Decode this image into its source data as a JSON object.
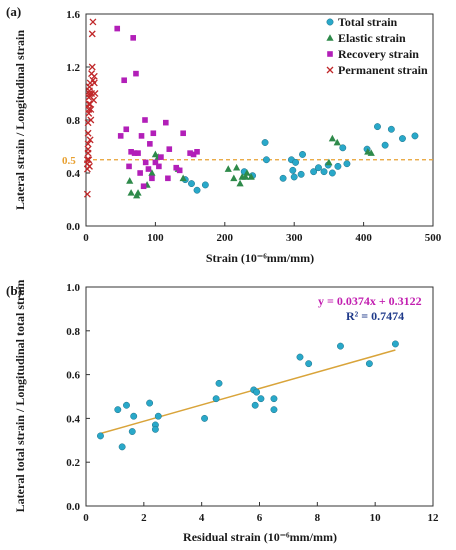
{
  "colors": {
    "total": "#29a8c9",
    "elastic": "#2e8a4a",
    "recovery": "#b21fb8",
    "permanent": "#c0282a",
    "trend": "#d9a43a",
    "refline": "#e8a030",
    "refline_label": "#e8a030",
    "equation": "#c21fb0",
    "r2": "#1f3a8a"
  },
  "chart_data": [
    {
      "panel_label": "(a)",
      "type": "scatter",
      "xlabel": "Strain (10⁻⁶mm/mm)",
      "ylabel": "Lateral strain / Longitudinal strain",
      "xlim": [
        0,
        500
      ],
      "ylim": [
        0,
        1.6
      ],
      "xticks": [
        "0",
        "100",
        "200",
        "300",
        "400",
        "500"
      ],
      "yticks": [
        "0.0",
        "0.4",
        "0.8",
        "1.2",
        "1.6"
      ],
      "grid": false,
      "legend_position": "top-right",
      "reference_line": {
        "y": 0.5,
        "label": "0.5"
      },
      "series": [
        {
          "name": "Total strain",
          "marker": "circle",
          "color_key": "total",
          "points": [
            [
              143,
              0.35
            ],
            [
              152,
              0.32
            ],
            [
              160,
              0.27
            ],
            [
              172,
              0.31
            ],
            [
              228,
              0.41
            ],
            [
              240,
              0.38
            ],
            [
              258,
              0.63
            ],
            [
              260,
              0.5
            ],
            [
              284,
              0.36
            ],
            [
              296,
              0.5
            ],
            [
              298,
              0.42
            ],
            [
              300,
              0.37
            ],
            [
              302,
              0.48
            ],
            [
              310,
              0.39
            ],
            [
              312,
              0.54
            ],
            [
              328,
              0.41
            ],
            [
              335,
              0.44
            ],
            [
              343,
              0.41
            ],
            [
              349,
              0.46
            ],
            [
              355,
              0.4
            ],
            [
              363,
              0.45
            ],
            [
              370,
              0.59
            ],
            [
              376,
              0.47
            ],
            [
              405,
              0.58
            ],
            [
              420,
              0.75
            ],
            [
              431,
              0.61
            ],
            [
              440,
              0.73
            ],
            [
              456,
              0.66
            ],
            [
              474,
              0.68
            ]
          ]
        },
        {
          "name": "Elastic strain",
          "marker": "triangle",
          "color_key": "elastic",
          "points": [
            [
              63,
              0.34
            ],
            [
              65,
              0.25
            ],
            [
              73,
              0.23
            ],
            [
              75,
              0.25
            ],
            [
              88,
              0.31
            ],
            [
              95,
              0.4
            ],
            [
              100,
              0.54
            ],
            [
              104,
              0.52
            ],
            [
              133,
              0.43
            ],
            [
              140,
              0.36
            ],
            [
              205,
              0.43
            ],
            [
              213,
              0.36
            ],
            [
              217,
              0.44
            ],
            [
              222,
              0.32
            ],
            [
              225,
              0.37
            ],
            [
              230,
              0.37
            ],
            [
              232,
              0.4
            ],
            [
              238,
              0.37
            ],
            [
              350,
              0.48
            ],
            [
              355,
              0.66
            ],
            [
              362,
              0.63
            ],
            [
              406,
              0.56
            ],
            [
              411,
              0.55
            ]
          ]
        },
        {
          "name": "Recovery strain",
          "marker": "square",
          "color_key": "recovery",
          "points": [
            [
              45,
              1.49
            ],
            [
              50,
              0.68
            ],
            [
              55,
              1.1
            ],
            [
              58,
              0.73
            ],
            [
              62,
              0.45
            ],
            [
              65,
              0.56
            ],
            [
              68,
              1.42
            ],
            [
              70,
              0.55
            ],
            [
              72,
              1.15
            ],
            [
              75,
              0.55
            ],
            [
              78,
              0.4
            ],
            [
              80,
              0.68
            ],
            [
              83,
              0.3
            ],
            [
              85,
              0.8
            ],
            [
              86,
              0.48
            ],
            [
              90,
              0.43
            ],
            [
              92,
              0.62
            ],
            [
              95,
              0.36
            ],
            [
              97,
              0.7
            ],
            [
              100,
              0.48
            ],
            [
              105,
              0.45
            ],
            [
              108,
              0.52
            ],
            [
              115,
              0.78
            ],
            [
              118,
              0.36
            ],
            [
              120,
              0.58
            ],
            [
              130,
              0.44
            ],
            [
              135,
              0.42
            ],
            [
              140,
              0.7
            ],
            [
              150,
              0.55
            ],
            [
              155,
              0.54
            ],
            [
              160,
              0.56
            ]
          ]
        },
        {
          "name": "Permanent strain",
          "marker": "x",
          "color_key": "permanent",
          "points": [
            [
              2,
              0.24
            ],
            [
              2,
              0.43
            ],
            [
              2,
              0.47
            ],
            [
              2,
              0.5
            ],
            [
              3,
              0.55
            ],
            [
              3,
              0.58
            ],
            [
              3,
              0.62
            ],
            [
              3,
              0.7
            ],
            [
              3,
              0.78
            ],
            [
              4,
              0.85
            ],
            [
              4,
              0.88
            ],
            [
              4,
              0.92
            ],
            [
              4,
              0.97
            ],
            [
              5,
              1.0
            ],
            [
              5,
              1.02
            ],
            [
              5,
              1.05
            ],
            [
              6,
              0.92
            ],
            [
              6,
              0.98
            ],
            [
              6,
              1.08
            ],
            [
              7,
              0.8
            ],
            [
              7,
              0.88
            ],
            [
              8,
              1.0
            ],
            [
              8,
              1.15
            ],
            [
              9,
              1.2
            ],
            [
              9,
              1.45
            ],
            [
              10,
              1.54
            ],
            [
              10,
              1.1
            ],
            [
              11,
              0.95
            ],
            [
              12,
              1.08
            ],
            [
              12,
              1.13
            ],
            [
              13,
              1.0
            ],
            [
              4,
              0.5
            ],
            [
              5,
              0.45
            ],
            [
              6,
              0.65
            ]
          ]
        }
      ]
    },
    {
      "panel_label": "(b)",
      "type": "scatter",
      "xlabel": "Residual strain (10⁻⁶mm/mm)",
      "ylabel": "Lateral total strain / Longitudinal total strain",
      "xlim": [
        0,
        12
      ],
      "ylim": [
        0,
        1.0
      ],
      "xticks": [
        "0",
        "2",
        "4",
        "6",
        "8",
        "10",
        "12"
      ],
      "yticks": [
        "0.0",
        "0.2",
        "0.4",
        "0.6",
        "0.8",
        "1.0"
      ],
      "grid": false,
      "series": [
        {
          "marker": "circle",
          "color_key": "total",
          "points": [
            [
              0.5,
              0.32
            ],
            [
              1.1,
              0.44
            ],
            [
              1.25,
              0.27
            ],
            [
              1.4,
              0.46
            ],
            [
              1.6,
              0.34
            ],
            [
              1.65,
              0.41
            ],
            [
              2.2,
              0.47
            ],
            [
              2.4,
              0.37
            ],
            [
              2.4,
              0.35
            ],
            [
              2.5,
              0.41
            ],
            [
              4.1,
              0.4
            ],
            [
              4.5,
              0.49
            ],
            [
              4.6,
              0.56
            ],
            [
              5.8,
              0.53
            ],
            [
              5.85,
              0.46
            ],
            [
              5.9,
              0.52
            ],
            [
              6.05,
              0.49
            ],
            [
              6.5,
              0.44
            ],
            [
              6.5,
              0.49
            ],
            [
              7.4,
              0.68
            ],
            [
              7.7,
              0.65
            ],
            [
              8.8,
              0.73
            ],
            [
              9.8,
              0.65
            ],
            [
              10.7,
              0.74
            ]
          ]
        }
      ],
      "trendline": {
        "slope": 0.0374,
        "intercept": 0.3122,
        "x_range": [
          0.5,
          10.7
        ]
      },
      "equation": "y = 0.0374x + 0.3122",
      "r_squared": "R² = 0.7474"
    }
  ]
}
